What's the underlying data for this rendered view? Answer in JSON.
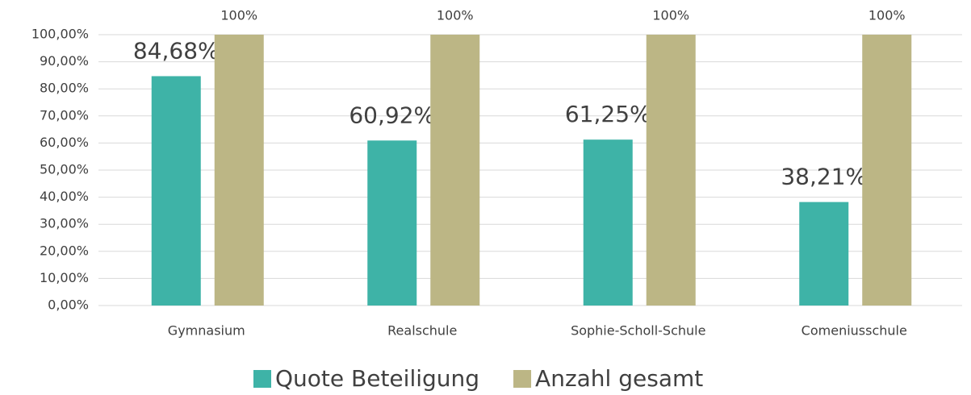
{
  "chart_data": {
    "type": "bar",
    "categories": [
      "Gymnasium",
      "Realschule",
      "Sophie-Scholl-Schule",
      "Comeniusschule"
    ],
    "series": [
      {
        "name": "Quote Beteiligung",
        "color": "#3eb3a7",
        "values": [
          84.68,
          60.92,
          61.25,
          38.21
        ],
        "value_labels": [
          "84,68%",
          "60,92%",
          "61,25%",
          "38,21%"
        ]
      },
      {
        "name": "Anzahl gesamt",
        "color": "#bcb685",
        "values": [
          100,
          100,
          100,
          100
        ],
        "value_labels": [
          "100%",
          "100%",
          "100%",
          "100%"
        ]
      }
    ],
    "ylim": [
      0,
      100
    ],
    "yticks": [
      {
        "value": 0,
        "label": "0,00%"
      },
      {
        "value": 10,
        "label": "10,00%"
      },
      {
        "value": 20,
        "label": "20,00%"
      },
      {
        "value": 30,
        "label": "30,00%"
      },
      {
        "value": 40,
        "label": "40,00%"
      },
      {
        "value": 50,
        "label": "50,00%"
      },
      {
        "value": 60,
        "label": "60,00%"
      },
      {
        "value": 70,
        "label": "70,00%"
      },
      {
        "value": 80,
        "label": "80,00%"
      },
      {
        "value": 90,
        "label": "90,00%"
      },
      {
        "value": 100,
        "label": "100,00%"
      }
    ],
    "grid": true,
    "legend": "bottom"
  }
}
